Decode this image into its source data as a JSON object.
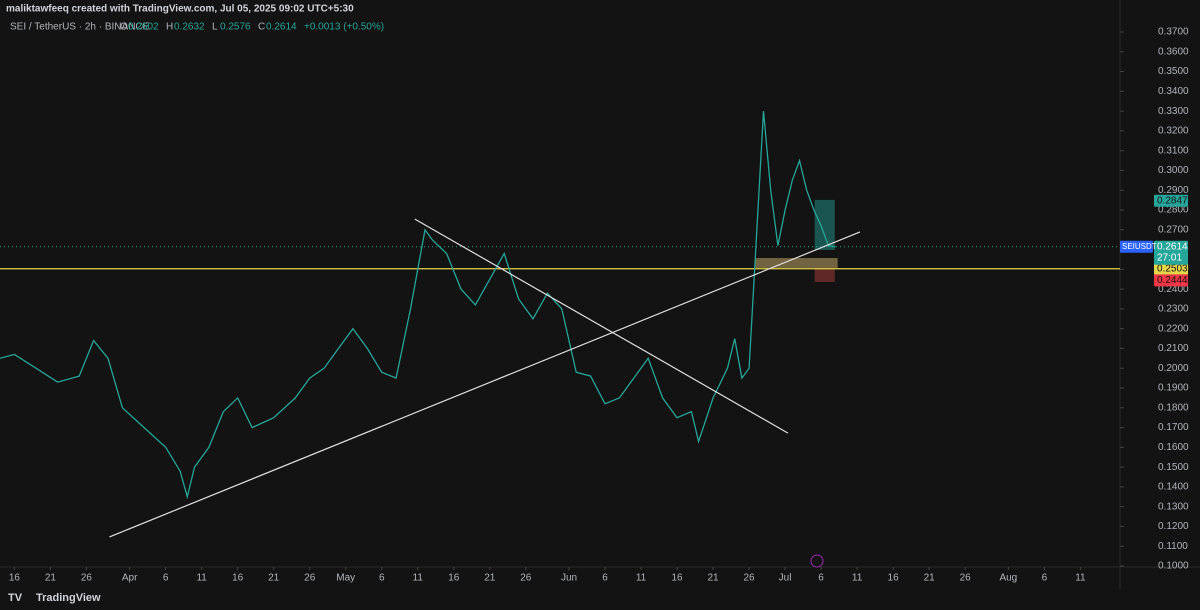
{
  "header": {
    "credit": "maliktawfeeq created with TradingView.com, Jul 05, 2025 09:02 UTC+5:30",
    "symbol": "SEI / TetherUS · 2h · BINANCE",
    "ohlc": [
      {
        "key": "O",
        "value": "0.2602"
      },
      {
        "key": "H",
        "value": "0.2632"
      },
      {
        "key": "L",
        "value": "0.2576"
      },
      {
        "key": "C",
        "value": "0.2614"
      }
    ],
    "change": "+0.0013 (+0.50%)"
  },
  "footer": {
    "brand": "TradingView"
  },
  "chart_data": {
    "type": "line",
    "color": "#26a69a",
    "x": [
      -2,
      0,
      3,
      6,
      9,
      11,
      13,
      15,
      18,
      21,
      23,
      24,
      25,
      27,
      29,
      31,
      33,
      36,
      39,
      41,
      43,
      45,
      47,
      49,
      51,
      53,
      55,
      57,
      58,
      60,
      62,
      64,
      66,
      68,
      70,
      72,
      74,
      76,
      78,
      80,
      82,
      84,
      86,
      88,
      90,
      92,
      94,
      95,
      97,
      99,
      100,
      101,
      102,
      103,
      104,
      105,
      106,
      107,
      108,
      109,
      110,
      111,
      112,
      113,
      114
    ],
    "values": [
      0.205,
      0.207,
      0.2,
      0.193,
      0.196,
      0.214,
      0.205,
      0.18,
      0.17,
      0.16,
      0.148,
      0.135,
      0.15,
      0.16,
      0.178,
      0.185,
      0.17,
      0.175,
      0.185,
      0.195,
      0.2,
      0.21,
      0.22,
      0.21,
      0.198,
      0.195,
      0.23,
      0.27,
      0.265,
      0.258,
      0.24,
      0.232,
      0.245,
      0.258,
      0.235,
      0.225,
      0.238,
      0.23,
      0.198,
      0.196,
      0.182,
      0.185,
      0.195,
      0.205,
      0.185,
      0.175,
      0.178,
      0.163,
      0.185,
      0.2,
      0.215,
      0.195,
      0.2,
      0.265,
      0.33,
      0.29,
      0.262,
      0.28,
      0.295,
      0.305,
      0.29,
      0.28,
      0.272,
      0.262,
      0.2614
    ],
    "xlim": [
      -2,
      153.5
    ],
    "ylim": [
      0.1,
      0.37
    ],
    "xticks": [
      {
        "value": 0,
        "label": "16"
      },
      {
        "value": 5,
        "label": "21"
      },
      {
        "value": 10,
        "label": "26"
      },
      {
        "value": 16,
        "label": "Apr"
      },
      {
        "value": 21,
        "label": "6"
      },
      {
        "value": 26,
        "label": "11"
      },
      {
        "value": 31,
        "label": "16"
      },
      {
        "value": 36,
        "label": "21"
      },
      {
        "value": 41,
        "label": "26"
      },
      {
        "value": 46,
        "label": "May"
      },
      {
        "value": 51,
        "label": "6"
      },
      {
        "value": 56,
        "label": "11"
      },
      {
        "value": 61,
        "label": "16"
      },
      {
        "value": 66,
        "label": "21"
      },
      {
        "value": 71,
        "label": "26"
      },
      {
        "value": 77,
        "label": "Jun"
      },
      {
        "value": 82,
        "label": "6"
      },
      {
        "value": 87,
        "label": "11"
      },
      {
        "value": 92,
        "label": "16"
      },
      {
        "value": 97,
        "label": "21"
      },
      {
        "value": 102,
        "label": "26"
      },
      {
        "value": 107,
        "label": "Jul"
      },
      {
        "value": 112,
        "label": "6"
      },
      {
        "value": 117,
        "label": "11"
      },
      {
        "value": 122,
        "label": "16"
      },
      {
        "value": 127,
        "label": "21"
      },
      {
        "value": 132,
        "label": "26"
      },
      {
        "value": 138,
        "label": "Aug"
      },
      {
        "value": 143,
        "label": "6"
      },
      {
        "value": 148,
        "label": "11"
      }
    ],
    "yticks": [
      {
        "value": 0.1,
        "label": "0.1000"
      },
      {
        "value": 0.11,
        "label": "0.1100"
      },
      {
        "value": 0.12,
        "label": "0.1200"
      },
      {
        "value": 0.13,
        "label": "0.1300"
      },
      {
        "value": 0.14,
        "label": "0.1400"
      },
      {
        "value": 0.15,
        "label": "0.1500"
      },
      {
        "value": 0.16,
        "label": "0.1600"
      },
      {
        "value": 0.17,
        "label": "0.1700"
      },
      {
        "value": 0.18,
        "label": "0.1800"
      },
      {
        "value": 0.19,
        "label": "0.1900"
      },
      {
        "value": 0.2,
        "label": "0.2000"
      },
      {
        "value": 0.21,
        "label": "0.2100"
      },
      {
        "value": 0.22,
        "label": "0.2200"
      },
      {
        "value": 0.23,
        "label": "0.2300"
      },
      {
        "value": 0.24,
        "label": "0.2400"
      },
      {
        "value": 0.25,
        "label": "0.2500"
      },
      {
        "value": 0.26,
        "label": "0.2600"
      },
      {
        "value": 0.27,
        "label": "0.2700"
      },
      {
        "value": 0.28,
        "label": "0.2800"
      },
      {
        "value": 0.29,
        "label": "0.2900"
      },
      {
        "value": 0.3,
        "label": "0.3000"
      },
      {
        "value": 0.31,
        "label": "0.3100"
      },
      {
        "value": 0.32,
        "label": "0.3200"
      },
      {
        "value": 0.33,
        "label": "0.3300"
      },
      {
        "value": 0.34,
        "label": "0.3400"
      },
      {
        "value": 0.35,
        "label": "0.3500"
      },
      {
        "value": 0.36,
        "label": "0.3600"
      },
      {
        "value": 0.37,
        "label": "0.3700"
      }
    ],
    "trendlines": [
      {
        "x": [
          13.2,
          117.4
        ],
        "y": [
          0.1147,
          0.2689
        ],
        "color": "#e0e0e0"
      },
      {
        "x": [
          55.6,
          107.4
        ],
        "y": [
          0.2754,
          0.1672
        ],
        "color": "#e0e0e0"
      }
    ],
    "hline": {
      "y": 0.2503,
      "color": "#e6d64a"
    },
    "zones": [
      {
        "x": [
          102.9,
          114.3
        ],
        "y": [
          0.2507,
          0.2557
        ],
        "color": "rgba(230,200,120,0.45)"
      },
      {
        "x": [
          111.1,
          113.9
        ],
        "y": [
          0.2598,
          0.2851
        ],
        "color": "rgba(38,166,154,0.45)"
      },
      {
        "x": [
          111.1,
          113.9
        ],
        "y": [
          0.2436,
          0.2507
        ],
        "color": "rgba(239,83,80,0.35)"
      }
    ],
    "price_labels": [
      {
        "value": 0.2847,
        "color": "#26a69a"
      },
      {
        "value": 0.2608,
        "color": "#e0e0e0"
      },
      {
        "value": 0.2503,
        "color": "#e6d64a"
      },
      {
        "value": 0.2444,
        "color": "#f23645"
      }
    ],
    "last": {
      "symbol": "SEIUSDT",
      "value": 0.2614,
      "countdown": "27:01",
      "color": "#26a69a"
    }
  }
}
